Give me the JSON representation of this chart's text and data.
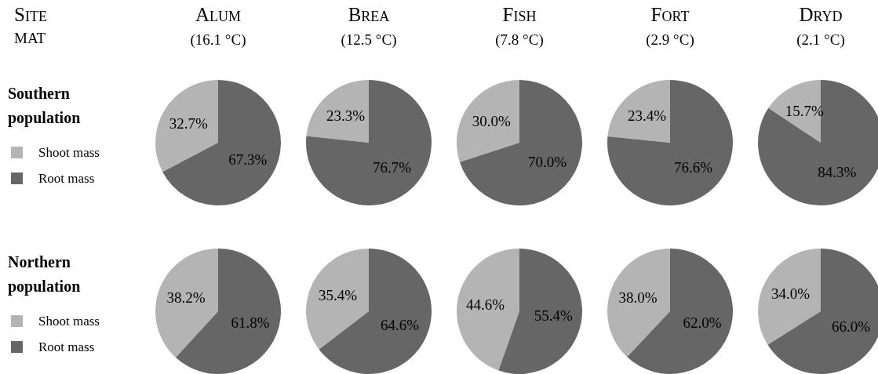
{
  "chart_data": [
    {
      "type": "other",
      "annotations": [
        "Site",
        "MAT"
      ]
    },
    {
      "type": "pie",
      "title": "Alum",
      "subtitle": "(16.1 °C)",
      "legend": "left",
      "legend_title": "Southern population",
      "categories": [
        "Shoot mass",
        "Root mass"
      ],
      "values": [
        32.7,
        67.3
      ],
      "colors": [
        "#b4b4b4",
        "#666666"
      ],
      "value_labels": [
        "32.7%",
        "67.3%"
      ]
    },
    {
      "type": "pie",
      "title": "Brea",
      "subtitle": "(12.5 °C)",
      "categories": [
        null,
        null
      ],
      "values": [
        23.3,
        76.7
      ],
      "colors": [
        "#b4b4b4",
        "#666666"
      ],
      "value_labels": [
        "23.3%",
        "76.7%"
      ]
    },
    {
      "type": "pie",
      "title": "Fish",
      "subtitle": "(7.8 °C)",
      "categories": [
        null,
        null
      ],
      "values": [
        30.0,
        70.0
      ],
      "colors": [
        "#b4b4b4",
        "#666666"
      ],
      "value_labels": [
        "30.0%",
        "70.0%"
      ]
    },
    {
      "type": "pie",
      "title": "Fort",
      "subtitle": "(2.9 °C)",
      "categories": [
        null,
        null
      ],
      "values": [
        23.4,
        76.6
      ],
      "colors": [
        "#b4b4b4",
        "#666666"
      ],
      "value_labels": [
        "23.4%",
        "76.6%"
      ]
    },
    {
      "type": "pie",
      "title": "Dryd",
      "subtitle": "(2.1 °C)",
      "categories": [
        null,
        null
      ],
      "values": [
        15.7,
        84.3
      ],
      "colors": [
        "#b4b4b4",
        "#666666"
      ],
      "value_labels": [
        "15.7%",
        "84.3%"
      ]
    },
    {
      "type": "pie",
      "legend": "left",
      "legend_title": "Northern population",
      "categories": [
        "Shoot mass",
        "Root mass"
      ],
      "values": [
        38.2,
        61.8
      ],
      "colors": [
        "#b4b4b4",
        "#666666"
      ],
      "value_labels": [
        "38.2%",
        "61.8%"
      ]
    },
    {
      "type": "pie",
      "categories": [
        null,
        null
      ],
      "values": [
        35.4,
        64.6
      ],
      "colors": [
        "#b4b4b4",
        "#666666"
      ],
      "value_labels": [
        "35.4%",
        "64.6%"
      ]
    },
    {
      "type": "pie",
      "categories": [
        null,
        null
      ],
      "values": [
        44.6,
        55.4
      ],
      "colors": [
        "#b4b4b4",
        "#666666"
      ],
      "value_labels": [
        "44.6%",
        "55.4%"
      ]
    },
    {
      "type": "pie",
      "categories": [
        null,
        null
      ],
      "values": [
        38.0,
        62.0
      ],
      "colors": [
        "#b4b4b4",
        "#666666"
      ],
      "value_labels": [
        "38.0%",
        "62.0%"
      ]
    },
    {
      "type": "pie",
      "categories": [
        null,
        null
      ],
      "values": [
        34.0,
        66.0
      ],
      "colors": [
        "#b4b4b4",
        "#666666"
      ],
      "value_labels": [
        "34.0%",
        "66.0%"
      ]
    }
  ]
}
